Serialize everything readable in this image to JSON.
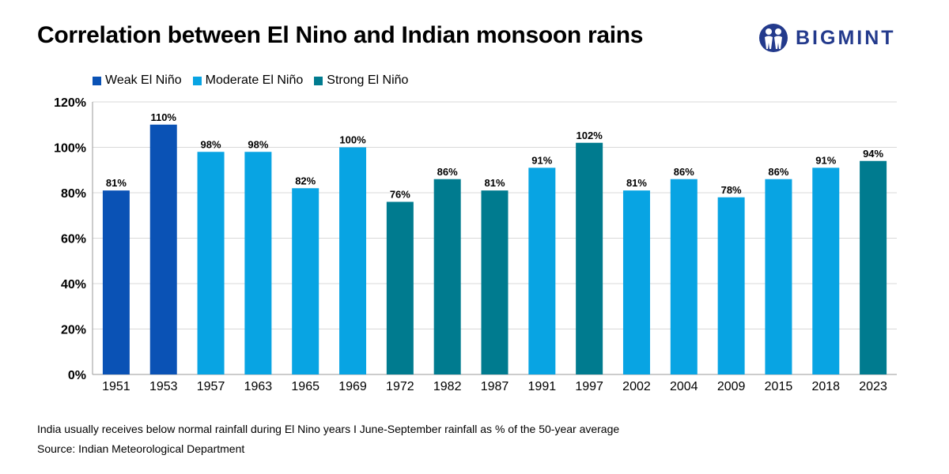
{
  "header": {
    "title": "Correlation between El Nino and Indian monsoon rains",
    "logo_text": "BIGMINT"
  },
  "colors": {
    "weak": "#0a52b5",
    "moderate": "#08a4e3",
    "strong": "#007b8f",
    "logo": "#233a8c"
  },
  "legend": [
    {
      "label": "Weak El Niño",
      "key": "weak"
    },
    {
      "label": "Moderate El Niño",
      "key": "moderate"
    },
    {
      "label": "Strong El Niño",
      "key": "strong"
    }
  ],
  "chart_data": {
    "type": "bar",
    "title": "Correlation between El Nino and Indian monsoon rains",
    "categories": [
      "1951",
      "1953",
      "1957",
      "1963",
      "1965",
      "1969",
      "1972",
      "1982",
      "1987",
      "1991",
      "1997",
      "2002",
      "2004",
      "2009",
      "2015",
      "2018",
      "2023"
    ],
    "values": [
      81,
      110,
      98,
      98,
      82,
      100,
      76,
      86,
      81,
      91,
      102,
      81,
      86,
      78,
      86,
      91,
      94
    ],
    "value_labels": [
      "81%",
      "110%",
      "98%",
      "98%",
      "82%",
      "100%",
      "76%",
      "86%",
      "81%",
      "91%",
      "102%",
      "81%",
      "86%",
      "78%",
      "86%",
      "91%",
      "94%"
    ],
    "intensity": [
      "weak",
      "weak",
      "moderate",
      "moderate",
      "moderate",
      "moderate",
      "strong",
      "strong",
      "strong",
      "moderate",
      "strong",
      "moderate",
      "moderate",
      "moderate",
      "moderate",
      "moderate",
      "strong"
    ],
    "ylim": [
      0,
      120
    ],
    "yticks": [
      "0%",
      "20%",
      "40%",
      "60%",
      "80%",
      "100%",
      "120%"
    ],
    "grid": true,
    "legend_position": "top-left"
  },
  "footer": {
    "note": "India usually receives below normal rainfall during El Nino years  I  June-September rainfall as % of the 50-year average",
    "source": "Source: Indian Meteorological Department"
  }
}
